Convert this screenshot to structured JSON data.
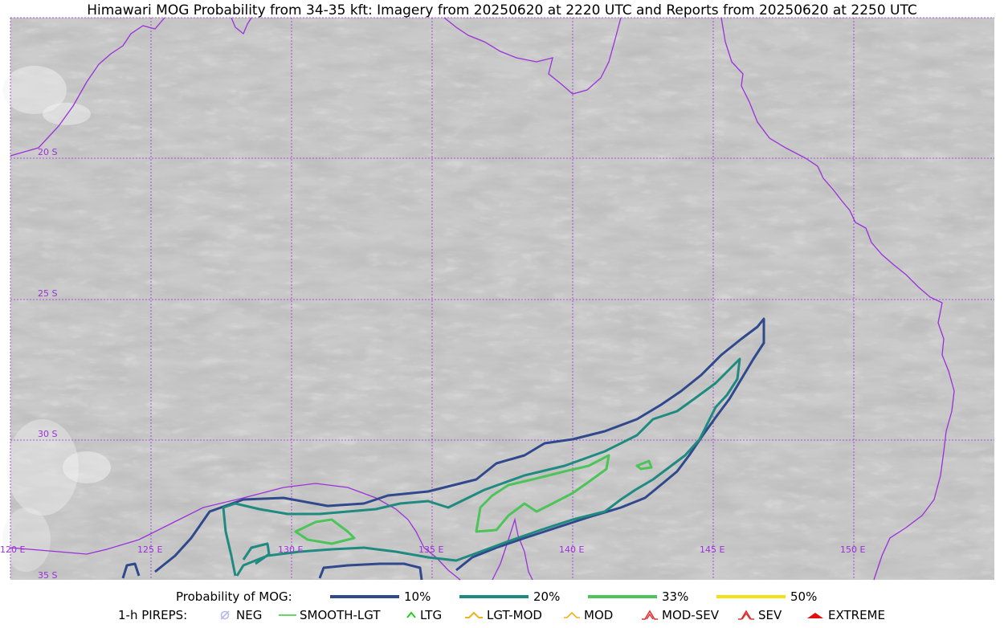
{
  "title": "Himawari MOG Probability from 34-35 kft: Imagery from 20250620 at 2220 UTC and Reports from 20250620 at 2250 UTC",
  "map": {
    "background": "satellite-water-vapor-gray",
    "coastline_color": "#9b30d9",
    "grid_color": "#9b30d9",
    "lat_labels": [
      "20 S",
      "25 S",
      "30 S",
      "35 S"
    ],
    "lon_labels": [
      "120 E",
      "125 E",
      "130 E",
      "135 E",
      "140 E",
      "145 E",
      "150 E"
    ]
  },
  "probability_legend": {
    "label": "Probability of MOG:",
    "items": [
      {
        "label": "10%",
        "color": "#30488c"
      },
      {
        "label": "20%",
        "color": "#1f8a80"
      },
      {
        "label": "33%",
        "color": "#4cc45a"
      },
      {
        "label": "50%",
        "color": "#f5e10f"
      }
    ]
  },
  "pirep_legend": {
    "label": "1-h PIREPS:",
    "items": [
      {
        "label": "NEG",
        "icon": "neg-icon",
        "color": "#b8b8f0"
      },
      {
        "label": "SMOOTH-LGT",
        "icon": "smooth-lgt-icon",
        "color": "#33cc33"
      },
      {
        "label": "LTG",
        "icon": "ltg-icon",
        "color": "#22cc22"
      },
      {
        "label": "LGT-MOD",
        "icon": "lgt-mod-icon",
        "color": "#f0b020"
      },
      {
        "label": "MOD",
        "icon": "mod-icon",
        "color": "#f0b020"
      },
      {
        "label": "MOD-SEV",
        "icon": "mod-sev-icon",
        "color": "#e03030"
      },
      {
        "label": "SEV",
        "icon": "sev-icon",
        "color": "#e03030"
      },
      {
        "label": "EXTREME",
        "icon": "extreme-icon",
        "color": "#e01010"
      }
    ]
  }
}
